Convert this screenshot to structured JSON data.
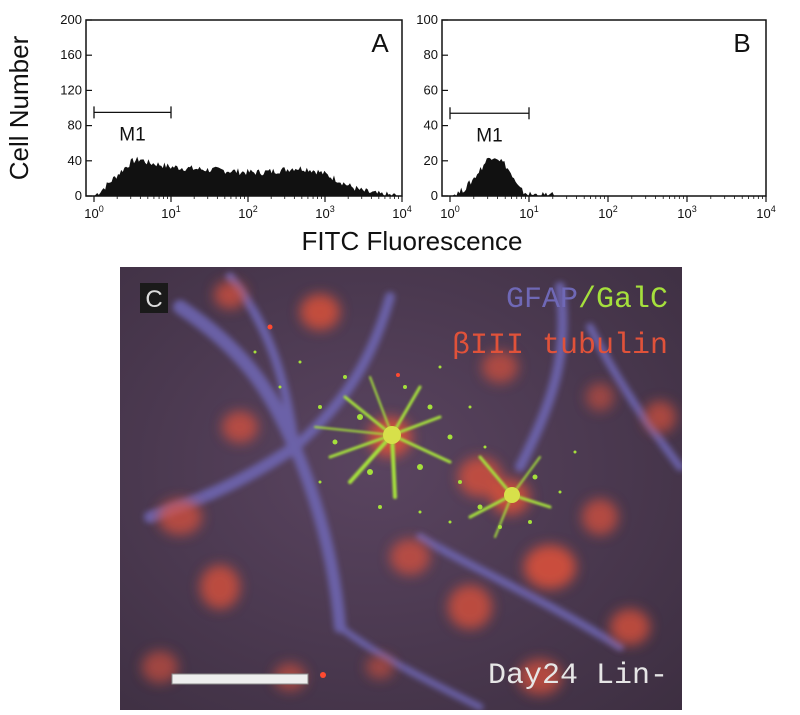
{
  "chart_data": [
    {
      "type": "area",
      "panel": "A",
      "xlabel": "FITC Fluorescence",
      "ylabel": "Cell Number",
      "x_scale": "log",
      "xlim": [
        1,
        10000
      ],
      "ylim": [
        0,
        200
      ],
      "yticks": [
        0,
        40,
        80,
        120,
        160,
        200
      ],
      "xticks": [
        "10^0",
        "10^1",
        "10^2",
        "10^3",
        "10^4"
      ],
      "gate": {
        "label": "M1",
        "x_range": [
          1,
          10
        ],
        "y": 95
      },
      "series": [
        {
          "x": [
            1,
            1.3,
            1.8,
            2.5,
            3.2,
            4,
            5,
            7,
            10,
            15,
            20,
            30,
            50,
            70,
            100,
            150,
            200,
            300,
            400,
            600,
            800,
            1000,
            1500,
            2000,
            3000,
            5000,
            7000,
            10000
          ],
          "values": [
            0,
            8,
            20,
            32,
            40,
            42,
            38,
            36,
            33,
            32,
            31,
            30,
            29,
            28,
            27,
            27,
            28,
            30,
            32,
            31,
            28,
            25,
            18,
            12,
            6,
            2,
            1,
            0
          ]
        }
      ]
    },
    {
      "type": "area",
      "panel": "B",
      "xlabel": "FITC Fluorescence",
      "ylabel": "Cell Number",
      "x_scale": "log",
      "xlim": [
        1,
        10000
      ],
      "ylim": [
        0,
        100
      ],
      "yticks": [
        0,
        20,
        40,
        60,
        80,
        100
      ],
      "xticks": [
        "10^0",
        "10^1",
        "10^2",
        "10^3",
        "10^4"
      ],
      "gate": {
        "label": "M1",
        "x_range": [
          1,
          10
        ],
        "y": 47
      },
      "series": [
        {
          "x": [
            1,
            1.3,
            1.6,
            2,
            2.5,
            3,
            3.5,
            4,
            5,
            6,
            7,
            8,
            10,
            15,
            20,
            50,
            100,
            1000,
            10000
          ],
          "values": [
            0,
            2,
            5,
            10,
            16,
            21,
            23,
            22,
            18,
            12,
            6,
            3,
            1,
            0.5,
            0.3,
            0.2,
            0.2,
            0.1,
            0
          ]
        }
      ]
    }
  ],
  "micrograph": {
    "panel_label": "C",
    "legend_gfap": "GFAP",
    "legend_slash": "/",
    "legend_galc": "GalC",
    "legend_tubulin": "βIII tubulin",
    "caption": "Day24 Lin-",
    "colors": {
      "background": "#4a3a4c",
      "gfap": "#6f68b6",
      "galc": "#a5e03c",
      "tubulin": "#e0523a",
      "caption": "#e6e6e6"
    }
  }
}
